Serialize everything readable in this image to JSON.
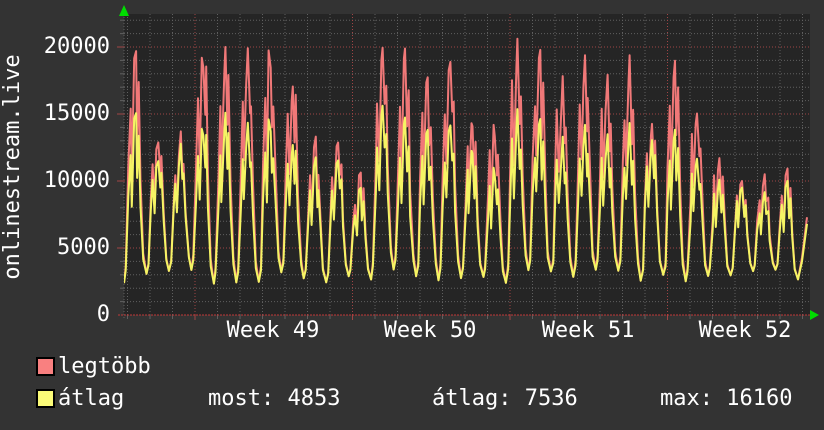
{
  "header": {
    "title": "onlinestream.live"
  },
  "colors": {
    "background": "#333333",
    "plot_background": "#252525",
    "text": "#ffffff",
    "grid_minor": "#606060",
    "grid_major": "#a04545",
    "axis": "#c03838",
    "arrow": "#00dd00"
  },
  "chart_data": {
    "type": "line",
    "title": "onlinestream.live",
    "y_ticks": [
      "20000",
      "15000",
      "10000",
      "5000",
      "0"
    ],
    "y_tick_values": [
      20000,
      15000,
      10000,
      5000,
      0
    ],
    "ylim": [
      0,
      22400
    ],
    "x_labels": [
      "Week 49",
      "Week 50",
      "Week 51",
      "Week 52"
    ],
    "x_unit": "day",
    "grid": "dotted",
    "legend_position": "bottom-left",
    "daily_trough_range": [
      2300,
      3400
    ],
    "series": [
      {
        "name": "legtöbb",
        "color": "#f07878",
        "end_value": 7300,
        "daily_peaks": [
          19200,
          13600,
          13400,
          20100,
          19600,
          19400,
          19600,
          17800,
          13000,
          13400,
          10400,
          20600,
          19400,
          17300,
          19800,
          14500,
          14200,
          20100,
          19300,
          17400,
          19400,
          17500,
          18900,
          14200,
          18500,
          15500,
          12200,
          10200,
          10300,
          10700
        ]
      },
      {
        "name": "átlag",
        "color": "#f5f464",
        "end_value": 6800,
        "daily_peaks": [
          14700,
          12100,
          12500,
          14500,
          14800,
          14000,
          14500,
          13200,
          11500,
          12000,
          9300,
          16100,
          14400,
          13500,
          14800,
          12400,
          11000,
          15000,
          14300,
          13000,
          14200,
          13200,
          14000,
          13000,
          13500,
          12000,
          10500,
          9700,
          9000,
          9800
        ]
      }
    ]
  },
  "legend": {
    "items": [
      {
        "label": "legtöbb",
        "swatch": "#f98080"
      },
      {
        "label": "átlag",
        "swatch": "#fbfb78"
      }
    ],
    "stats": [
      "most: 4853",
      "átlag: 7536",
      "max: 16160"
    ]
  }
}
